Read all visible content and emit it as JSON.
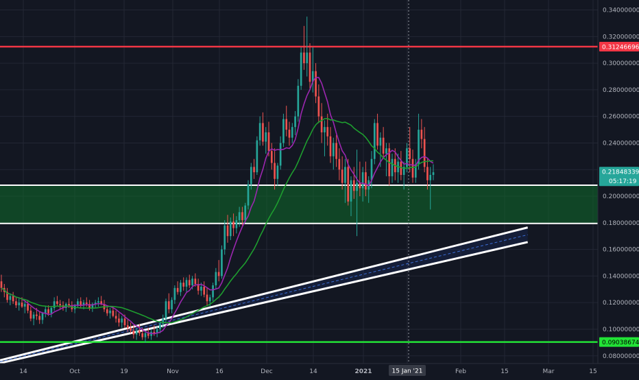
{
  "chart_data": {
    "type": "candlestick",
    "instrument_current_price": "0.21848339",
    "countdown": "05:17:19",
    "y_axis": {
      "ticks": [
        "0.34000000",
        "0.32000000",
        "0.30000000",
        "0.28000000",
        "0.26000000",
        "0.24000000",
        "0.22000000",
        "0.20000000",
        "0.18000000",
        "0.16000000",
        "0.14000000",
        "0.12000000",
        "0.10000000",
        "0.08000000"
      ],
      "tick_values": [
        0.34,
        0.32,
        0.3,
        0.28,
        0.26,
        0.24,
        0.22,
        0.2,
        0.18,
        0.16,
        0.14,
        0.12,
        0.1,
        0.08
      ],
      "range": [
        0.0742,
        0.3475
      ]
    },
    "x_axis": {
      "ticks": [
        "14",
        "Oct",
        "19",
        "Nov",
        "16",
        "Dec",
        "14",
        "2021",
        "15 Jan '21",
        "Feb",
        "15",
        "Mar",
        "15"
      ],
      "crosshair_label": "15 Jan '21",
      "start_date": "2020-09-07",
      "end_date": "2021-03-22"
    },
    "horizontal_levels": [
      {
        "value": 0.31246696,
        "label": "0.31246696",
        "color": "#f23645"
      },
      {
        "value": 0.09038674,
        "label": "0.09038674",
        "color": "#22e336"
      }
    ],
    "support_zone": {
      "low": 0.1795,
      "high": 0.2083,
      "color": "#0f6b2a"
    },
    "channel": {
      "lower": {
        "from": {
          "date": "2020-09-07",
          "value": 0.0745
        },
        "to": {
          "date": "2021-02-27",
          "value": 0.1655
        }
      },
      "upper": {
        "from": {
          "date": "2020-09-26",
          "value": 0.0876
        },
        "to": {
          "date": "2021-02-27",
          "value": 0.1765
        }
      }
    },
    "moving_averages": [
      {
        "color": "#9c27b0",
        "values_desc": "short MA"
      },
      {
        "color": "#1e9e2f",
        "values_desc": "long MA"
      }
    ],
    "colors": {
      "up": "#26a69a",
      "down": "#ef5350",
      "background": "#131722",
      "grid": "#232734"
    },
    "candles": [
      [
        0.136,
        0.141,
        0.128,
        0.131
      ],
      [
        0.131,
        0.134,
        0.124,
        0.128
      ],
      [
        0.128,
        0.131,
        0.12,
        0.122
      ],
      [
        0.122,
        0.127,
        0.118,
        0.125
      ],
      [
        0.125,
        0.128,
        0.119,
        0.121
      ],
      [
        0.121,
        0.124,
        0.116,
        0.118
      ],
      [
        0.118,
        0.123,
        0.114,
        0.12
      ],
      [
        0.12,
        0.124,
        0.116,
        0.117
      ],
      [
        0.117,
        0.121,
        0.112,
        0.119
      ],
      [
        0.119,
        0.122,
        0.112,
        0.114
      ],
      [
        0.114,
        0.117,
        0.106,
        0.108
      ],
      [
        0.108,
        0.113,
        0.103,
        0.111
      ],
      [
        0.111,
        0.116,
        0.107,
        0.11
      ],
      [
        0.11,
        0.113,
        0.104,
        0.107
      ],
      [
        0.107,
        0.113,
        0.104,
        0.112
      ],
      [
        0.112,
        0.117,
        0.109,
        0.115
      ],
      [
        0.115,
        0.118,
        0.11,
        0.112
      ],
      [
        0.112,
        0.117,
        0.109,
        0.116
      ],
      [
        0.116,
        0.124,
        0.114,
        0.121
      ],
      [
        0.121,
        0.125,
        0.117,
        0.119
      ],
      [
        0.119,
        0.122,
        0.115,
        0.118
      ],
      [
        0.118,
        0.121,
        0.114,
        0.116
      ],
      [
        0.116,
        0.12,
        0.113,
        0.119
      ],
      [
        0.119,
        0.123,
        0.116,
        0.118
      ],
      [
        0.118,
        0.121,
        0.113,
        0.115
      ],
      [
        0.115,
        0.119,
        0.112,
        0.118
      ],
      [
        0.118,
        0.123,
        0.116,
        0.121
      ],
      [
        0.121,
        0.124,
        0.116,
        0.118
      ],
      [
        0.118,
        0.122,
        0.115,
        0.12
      ],
      [
        0.12,
        0.124,
        0.117,
        0.119
      ],
      [
        0.119,
        0.122,
        0.114,
        0.116
      ],
      [
        0.116,
        0.12,
        0.113,
        0.119
      ],
      [
        0.119,
        0.122,
        0.116,
        0.12
      ],
      [
        0.12,
        0.124,
        0.117,
        0.121
      ],
      [
        0.121,
        0.125,
        0.118,
        0.119
      ],
      [
        0.119,
        0.122,
        0.113,
        0.115
      ],
      [
        0.115,
        0.118,
        0.11,
        0.112
      ],
      [
        0.112,
        0.116,
        0.108,
        0.114
      ],
      [
        0.114,
        0.117,
        0.109,
        0.11
      ],
      [
        0.11,
        0.114,
        0.105,
        0.108
      ],
      [
        0.108,
        0.112,
        0.102,
        0.105
      ],
      [
        0.105,
        0.11,
        0.101,
        0.108
      ],
      [
        0.108,
        0.111,
        0.101,
        0.103
      ],
      [
        0.103,
        0.107,
        0.098,
        0.101
      ],
      [
        0.101,
        0.105,
        0.097,
        0.099
      ],
      [
        0.099,
        0.103,
        0.093,
        0.096
      ],
      [
        0.096,
        0.101,
        0.092,
        0.099
      ],
      [
        0.099,
        0.104,
        0.095,
        0.097
      ],
      [
        0.097,
        0.101,
        0.092,
        0.094
      ],
      [
        0.094,
        0.099,
        0.09,
        0.097
      ],
      [
        0.097,
        0.101,
        0.093,
        0.095
      ],
      [
        0.095,
        0.1,
        0.092,
        0.098
      ],
      [
        0.098,
        0.103,
        0.095,
        0.097
      ],
      [
        0.097,
        0.102,
        0.094,
        0.1
      ],
      [
        0.1,
        0.106,
        0.097,
        0.104
      ],
      [
        0.104,
        0.111,
        0.101,
        0.108
      ],
      [
        0.108,
        0.123,
        0.106,
        0.121
      ],
      [
        0.121,
        0.127,
        0.112,
        0.115
      ],
      [
        0.115,
        0.124,
        0.112,
        0.122
      ],
      [
        0.122,
        0.133,
        0.119,
        0.131
      ],
      [
        0.131,
        0.136,
        0.126,
        0.128
      ],
      [
        0.128,
        0.137,
        0.125,
        0.135
      ],
      [
        0.135,
        0.139,
        0.129,
        0.132
      ],
      [
        0.132,
        0.139,
        0.128,
        0.137
      ],
      [
        0.137,
        0.141,
        0.131,
        0.133
      ],
      [
        0.133,
        0.14,
        0.13,
        0.138
      ],
      [
        0.138,
        0.142,
        0.132,
        0.134
      ],
      [
        0.134,
        0.138,
        0.126,
        0.129
      ],
      [
        0.129,
        0.135,
        0.125,
        0.132
      ],
      [
        0.132,
        0.136,
        0.124,
        0.126
      ],
      [
        0.126,
        0.131,
        0.118,
        0.121
      ],
      [
        0.121,
        0.126,
        0.117,
        0.124
      ],
      [
        0.124,
        0.135,
        0.121,
        0.133
      ],
      [
        0.133,
        0.146,
        0.13,
        0.143
      ],
      [
        0.143,
        0.152,
        0.136,
        0.14
      ],
      [
        0.14,
        0.163,
        0.138,
        0.16
      ],
      [
        0.16,
        0.182,
        0.156,
        0.178
      ],
      [
        0.178,
        0.186,
        0.165,
        0.17
      ],
      [
        0.17,
        0.184,
        0.167,
        0.181
      ],
      [
        0.181,
        0.187,
        0.17,
        0.176
      ],
      [
        0.176,
        0.185,
        0.172,
        0.182
      ],
      [
        0.182,
        0.192,
        0.177,
        0.188
      ],
      [
        0.188,
        0.192,
        0.178,
        0.182
      ],
      [
        0.182,
        0.195,
        0.18,
        0.193
      ],
      [
        0.193,
        0.212,
        0.19,
        0.209
      ],
      [
        0.209,
        0.225,
        0.205,
        0.222
      ],
      [
        0.222,
        0.228,
        0.213,
        0.218
      ],
      [
        0.218,
        0.245,
        0.216,
        0.242
      ],
      [
        0.242,
        0.26,
        0.238,
        0.255
      ],
      [
        0.255,
        0.263,
        0.238,
        0.241
      ],
      [
        0.241,
        0.252,
        0.232,
        0.248
      ],
      [
        0.248,
        0.256,
        0.23,
        0.234
      ],
      [
        0.234,
        0.24,
        0.22,
        0.225
      ],
      [
        0.225,
        0.236,
        0.205,
        0.213
      ],
      [
        0.213,
        0.225,
        0.208,
        0.223
      ],
      [
        0.223,
        0.245,
        0.22,
        0.24
      ],
      [
        0.24,
        0.262,
        0.237,
        0.258
      ],
      [
        0.258,
        0.268,
        0.245,
        0.25
      ],
      [
        0.25,
        0.256,
        0.238,
        0.244
      ],
      [
        0.244,
        0.255,
        0.24,
        0.252
      ],
      [
        0.252,
        0.264,
        0.246,
        0.26
      ],
      [
        0.26,
        0.288,
        0.256,
        0.283
      ],
      [
        0.283,
        0.312,
        0.28,
        0.308
      ],
      [
        0.308,
        0.328,
        0.295,
        0.3
      ],
      [
        0.3,
        0.335,
        0.29,
        0.308
      ],
      [
        0.308,
        0.315,
        0.281,
        0.286
      ],
      [
        0.286,
        0.312,
        0.278,
        0.294
      ],
      [
        0.294,
        0.3,
        0.27,
        0.275
      ],
      [
        0.275,
        0.284,
        0.255,
        0.26
      ],
      [
        0.26,
        0.27,
        0.24,
        0.248
      ],
      [
        0.248,
        0.257,
        0.23,
        0.252
      ],
      [
        0.252,
        0.262,
        0.238,
        0.245
      ],
      [
        0.245,
        0.252,
        0.225,
        0.23
      ],
      [
        0.23,
        0.244,
        0.22,
        0.24
      ],
      [
        0.24,
        0.246,
        0.222,
        0.228
      ],
      [
        0.228,
        0.236,
        0.212,
        0.22
      ],
      [
        0.22,
        0.23,
        0.205,
        0.21
      ],
      [
        0.21,
        0.228,
        0.195,
        0.222
      ],
      [
        0.222,
        0.228,
        0.193,
        0.196
      ],
      [
        0.196,
        0.215,
        0.185,
        0.212
      ],
      [
        0.212,
        0.222,
        0.198,
        0.204
      ],
      [
        0.204,
        0.235,
        0.17,
        0.21
      ],
      [
        0.21,
        0.226,
        0.2,
        0.206
      ],
      [
        0.206,
        0.222,
        0.196,
        0.218
      ],
      [
        0.218,
        0.226,
        0.2,
        0.205
      ],
      [
        0.205,
        0.215,
        0.195,
        0.212
      ],
      [
        0.212,
        0.234,
        0.206,
        0.228
      ],
      [
        0.228,
        0.258,
        0.224,
        0.255
      ],
      [
        0.255,
        0.262,
        0.235,
        0.238
      ],
      [
        0.238,
        0.248,
        0.222,
        0.244
      ],
      [
        0.244,
        0.252,
        0.228,
        0.232
      ],
      [
        0.232,
        0.24,
        0.215,
        0.236
      ],
      [
        0.236,
        0.24,
        0.208,
        0.215
      ],
      [
        0.215,
        0.232,
        0.21,
        0.228
      ],
      [
        0.228,
        0.236,
        0.212,
        0.218
      ],
      [
        0.218,
        0.232,
        0.21,
        0.226
      ],
      [
        0.226,
        0.234,
        0.212,
        0.216
      ],
      [
        0.216,
        0.226,
        0.205,
        0.222
      ],
      [
        0.222,
        0.24,
        0.218,
        0.236
      ],
      [
        0.236,
        0.252,
        0.218,
        0.228
      ],
      [
        0.228,
        0.235,
        0.21,
        0.214
      ],
      [
        0.214,
        0.228,
        0.21,
        0.224
      ],
      [
        0.224,
        0.262,
        0.22,
        0.25
      ],
      [
        0.25,
        0.258,
        0.236,
        0.243
      ],
      [
        0.243,
        0.252,
        0.218,
        0.222
      ],
      [
        0.222,
        0.228,
        0.205,
        0.212
      ],
      [
        0.212,
        0.222,
        0.19,
        0.216
      ],
      [
        0.216,
        0.224,
        0.212,
        0.218
      ]
    ]
  }
}
